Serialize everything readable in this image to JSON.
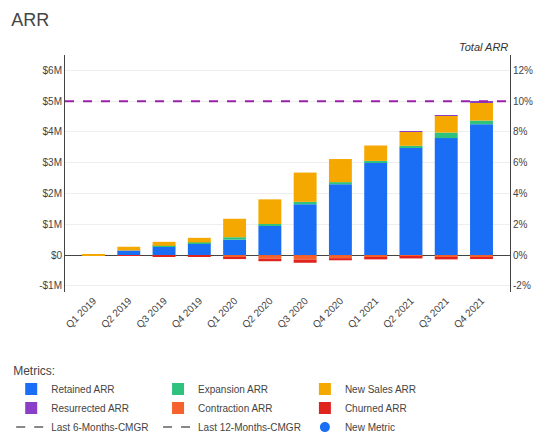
{
  "chart_data": {
    "type": "bar",
    "title": "ARR",
    "stacked": true,
    "grid": true,
    "legend": "bottom",
    "legend_title": "Metrics:",
    "annotations": [
      "Total ARR"
    ],
    "categories": [
      "Q1 2019",
      "Q2 2019",
      "Q3 2019",
      "Q4 2019",
      "Q1 2020",
      "Q2 2020",
      "Q3 2020",
      "Q4 2020",
      "Q1 2021",
      "Q2 2021",
      "Q3 2021",
      "Q4 2021"
    ],
    "series": [
      {
        "name": "Retained ARR",
        "color": "#1a6ef5",
        "values": [
          0,
          150000,
          280000,
          380000,
          500000,
          950000,
          1650000,
          2300000,
          3000000,
          3500000,
          3800000,
          4250000
        ]
      },
      {
        "name": "Expansion ARR",
        "color": "#2ec27e",
        "values": [
          0,
          0,
          20000,
          30000,
          80000,
          60000,
          80000,
          70000,
          60000,
          50000,
          180000,
          120000
        ]
      },
      {
        "name": "New Sales ARR",
        "color": "#f5a800",
        "values": [
          20000,
          120000,
          130000,
          150000,
          600000,
          800000,
          950000,
          750000,
          500000,
          450000,
          550000,
          600000
        ]
      },
      {
        "name": "Resurrected ARR",
        "color": "#8b3fc8",
        "values": [
          0,
          0,
          0,
          0,
          0,
          0,
          0,
          0,
          0,
          30000,
          20000,
          20000
        ]
      },
      {
        "name": "Contraction ARR",
        "color": "#f5622d",
        "values": [
          0,
          -20000,
          -30000,
          -30000,
          -80000,
          -120000,
          -150000,
          -100000,
          -80000,
          -60000,
          -80000,
          -70000
        ]
      },
      {
        "name": "Churned ARR",
        "color": "#e0231c",
        "values": [
          0,
          -10000,
          -15000,
          -20000,
          -50000,
          -80000,
          -100000,
          -70000,
          -60000,
          -50000,
          -60000,
          -60000
        ]
      },
      {
        "name": "Last 6-Months-CMGR",
        "type": "line",
        "line_style": "dashed",
        "color": "#888888",
        "axis": "y2",
        "values": [
          null,
          null,
          null,
          null,
          null,
          null,
          null,
          null,
          null,
          null,
          null,
          null
        ]
      },
      {
        "name": "Last 12-Months-CMGR",
        "type": "line",
        "line_style": "dashed",
        "color": "#888888",
        "axis": "y2",
        "values": [
          null,
          null,
          null,
          null,
          null,
          null,
          null,
          null,
          null,
          null,
          null,
          null
        ]
      },
      {
        "name": "New Metric",
        "type": "scatter",
        "marker": "circle",
        "color": "#1a6ef5",
        "axis": "y2",
        "values": [
          null,
          null,
          null,
          null,
          null,
          null,
          null,
          null,
          null,
          null,
          null,
          null
        ]
      }
    ],
    "hlines": [
      {
        "y": 5000000,
        "color": "#9b1fa8",
        "line_style": "dashed"
      }
    ],
    "ylim": [
      -1200000,
      6500000
    ],
    "yticks": [
      {
        "value": -1000000,
        "label": "-$1M"
      },
      {
        "value": 0,
        "label": "$0"
      },
      {
        "value": 1000000,
        "label": "$1M"
      },
      {
        "value": 2000000,
        "label": "$2M"
      },
      {
        "value": 3000000,
        "label": "$3M"
      },
      {
        "value": 4000000,
        "label": "$4M"
      },
      {
        "value": 5000000,
        "label": "$5M"
      },
      {
        "value": 6000000,
        "label": "$6M"
      }
    ],
    "y2lim": [
      -2.4,
      13
    ],
    "y2ticks": [
      {
        "value": -2,
        "label": "-2%"
      },
      {
        "value": 0,
        "label": "0%"
      },
      {
        "value": 2,
        "label": "2%"
      },
      {
        "value": 4,
        "label": "4%"
      },
      {
        "value": 6,
        "label": "6%"
      },
      {
        "value": 8,
        "label": "8%"
      },
      {
        "value": 10,
        "label": "10%"
      },
      {
        "value": 12,
        "label": "12%"
      }
    ]
  }
}
